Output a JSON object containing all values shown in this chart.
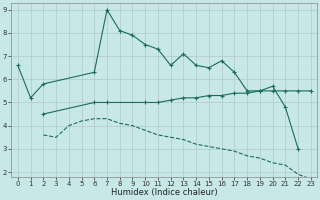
{
  "xlabel": "Humidex (Indice chaleur)",
  "bg_color": "#c8e8e8",
  "grid_color": "#b0c8c8",
  "line_color": "#1a6b5a",
  "line1_x": [
    0,
    1,
    2,
    6,
    7,
    8,
    9,
    10,
    11,
    12,
    13,
    14,
    15,
    16,
    17,
    18,
    19,
    20,
    21,
    22
  ],
  "line1_y": [
    6.6,
    5.2,
    5.8,
    6.3,
    9.0,
    8.1,
    7.9,
    7.5,
    7.3,
    6.6,
    7.1,
    6.6,
    6.5,
    6.8,
    6.3,
    5.5,
    5.5,
    5.7,
    4.8,
    3.0
  ],
  "line2_x": [
    2,
    6,
    7,
    10,
    11,
    12,
    13,
    14,
    15,
    16,
    17,
    18,
    19,
    20,
    21,
    22,
    23
  ],
  "line2_y": [
    4.5,
    5.0,
    5.0,
    5.0,
    5.0,
    5.1,
    5.2,
    5.2,
    5.3,
    5.3,
    5.4,
    5.4,
    5.5,
    5.5,
    5.5,
    5.5,
    5.5
  ],
  "line3_x": [
    2,
    3,
    4,
    5,
    6,
    7,
    8,
    9,
    10,
    11,
    12,
    13,
    14,
    15,
    16,
    17,
    18,
    19,
    20,
    21,
    22,
    23
  ],
  "line3_y": [
    3.6,
    3.5,
    4.0,
    4.2,
    4.3,
    4.3,
    4.1,
    4.0,
    3.8,
    3.6,
    3.5,
    3.4,
    3.2,
    3.1,
    3.0,
    2.9,
    2.7,
    2.6,
    2.4,
    2.3,
    1.9,
    1.7
  ],
  "xlim": [
    -0.5,
    23.5
  ],
  "ylim": [
    1.8,
    9.3
  ],
  "yticks": [
    2,
    3,
    4,
    5,
    6,
    7,
    8,
    9
  ],
  "xticks": [
    0,
    1,
    2,
    3,
    4,
    5,
    6,
    7,
    8,
    9,
    10,
    11,
    12,
    13,
    14,
    15,
    16,
    17,
    18,
    19,
    20,
    21,
    22,
    23
  ]
}
